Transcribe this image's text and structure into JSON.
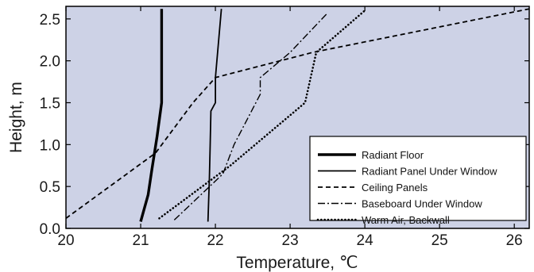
{
  "chart_data": {
    "type": "line",
    "xlabel": "Temperature, ℃",
    "ylabel": "Height, m",
    "xlim": [
      20,
      26.2
    ],
    "ylim": [
      0,
      2.65
    ],
    "xticks": [
      "20",
      "21",
      "22",
      "23",
      "24",
      "25",
      "26"
    ],
    "yticks": [
      "0.0",
      "0.5",
      "1.0",
      "1.5",
      "2.0",
      "2.5"
    ],
    "plot_background": "#cdd2e6",
    "grid": false,
    "legend_position": "bottom-right",
    "series": [
      {
        "name": "Radiant Floor",
        "style": "solid-thick",
        "color": "#000000",
        "points": [
          [
            21.0,
            0.08
          ],
          [
            21.1,
            0.4
          ],
          [
            21.15,
            0.7
          ],
          [
            21.22,
            1.1
          ],
          [
            21.28,
            1.5
          ],
          [
            21.28,
            2.62
          ]
        ]
      },
      {
        "name": "Radiant Panel Under Window",
        "style": "solid",
        "color": "#000000",
        "points": [
          [
            21.9,
            0.08
          ],
          [
            21.92,
            0.6
          ],
          [
            21.93,
            1.0
          ],
          [
            21.94,
            1.4
          ],
          [
            22.0,
            1.5
          ],
          [
            22.0,
            1.8
          ],
          [
            22.08,
            2.62
          ]
        ]
      },
      {
        "name": "Ceiling Panels",
        "style": "dashed",
        "color": "#000000",
        "points": [
          [
            20.0,
            0.12
          ],
          [
            21.2,
            0.9
          ],
          [
            21.7,
            1.5
          ],
          [
            22.0,
            1.8
          ],
          [
            23.3,
            2.1
          ],
          [
            26.2,
            2.62
          ]
        ]
      },
      {
        "name": "Baseboard Under Window",
        "style": "dash-dot",
        "color": "#000000",
        "points": [
          [
            21.45,
            0.1
          ],
          [
            22.1,
            0.65
          ],
          [
            22.25,
            1.0
          ],
          [
            22.6,
            1.6
          ],
          [
            22.6,
            1.8
          ],
          [
            23.0,
            2.1
          ],
          [
            23.5,
            2.57
          ]
        ]
      },
      {
        "name": "Warm Air, Backwall",
        "style": "dotted",
        "color": "#000000",
        "points": [
          [
            21.25,
            0.12
          ],
          [
            22.2,
            0.75
          ],
          [
            23.2,
            1.5
          ],
          [
            23.35,
            2.1
          ],
          [
            24.0,
            2.6
          ]
        ]
      }
    ]
  }
}
